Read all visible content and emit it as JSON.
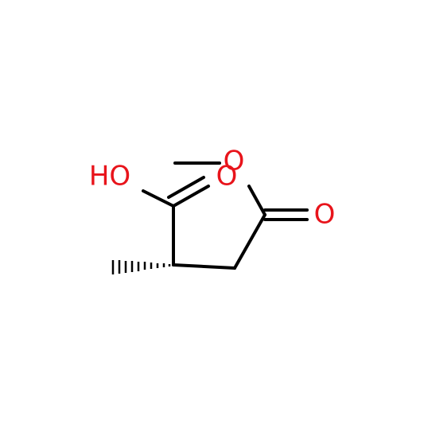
{
  "atoms": [
    {
      "label": "HO"
    },
    {
      "label": "O"
    },
    {
      "label": "O"
    },
    {
      "label": "O"
    }
  ]
}
